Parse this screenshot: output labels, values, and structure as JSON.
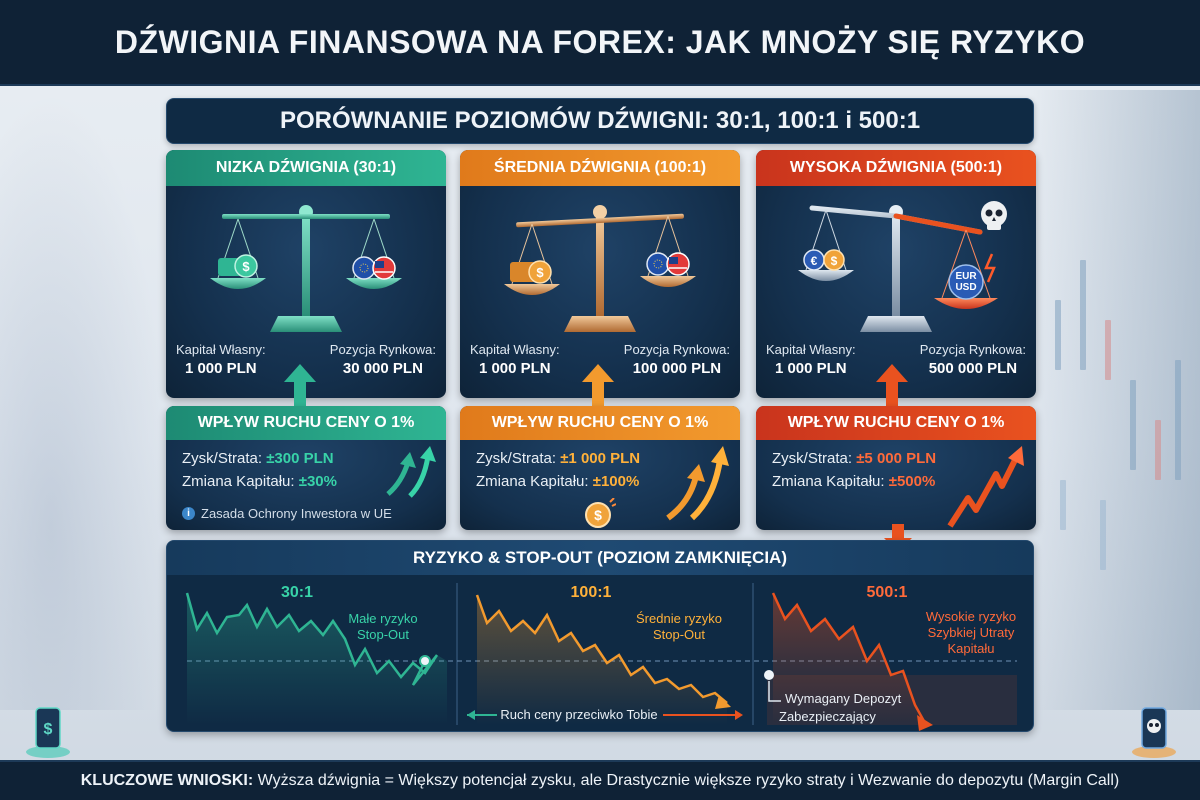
{
  "title": "DŹWIGNIA FINANSOWA NA FOREX: JAK MNOŻY SIĘ RYZYKO",
  "subtitle": "PORÓWNANIE POZIOMÓW DŹWIGNI: 30:1, 100:1 i 500:1",
  "panels": [
    {
      "header": "NIZKA DŹWIGNIA (30:1)",
      "equity_label": "Kapitał Własny:",
      "equity_value": "1 000 PLN",
      "position_label": "Pozycja Rynkowa:",
      "position_value": "30 000 PLN",
      "impact_header": "WPŁYW RUCHU CENY O 1%",
      "pl_label": "Zysk/Strata:",
      "pl_value": "±300 PLN",
      "change_label": "Zmiana Kapitału:",
      "change_value": "±30%",
      "note": "Zasada Ochrony Inwestora w UE",
      "color": "#2fb593"
    },
    {
      "header": "ŚREDNIA DŹWIGNIA (100:1)",
      "equity_label": "Kapitał Własny:",
      "equity_value": "1 000 PLN",
      "position_label": "Pozycja Rynkowa:",
      "position_value": "100 000 PLN",
      "impact_header": "WPŁYW RUCHU CENY O 1%",
      "pl_label": "Zysk/Strata:",
      "pl_value": "±1 000 PLN",
      "change_label": "Zmiana Kapitału:",
      "change_value": "±100%",
      "color": "#f29a2e"
    },
    {
      "header": "WYSOKA DŹWIGNIA (500:1)",
      "equity_label": "Kapitał Własny:",
      "equity_value": "1 000 PLN",
      "position_label": "Pozycja Rynkowa:",
      "position_value": "500 000 PLN",
      "impact_header": "WPŁYW RUCHU CENY O 1%",
      "pl_label": "Zysk/Strata:",
      "pl_value": "±5 000 PLN",
      "change_label": "Zmiana Kapitału:",
      "change_value": "±500%",
      "badge_text": "EUR\nUSD",
      "color": "#e9521f"
    }
  ],
  "risk": {
    "header": "RYZYKO & STOP-OUT (POZIOM ZAMKNIĘCIA)",
    "charts": [
      {
        "ratio": "30:1",
        "caption_line1": "Małe ryzyko",
        "caption_line2": "Stop-Out",
        "color": "#2fb593"
      },
      {
        "ratio": "100:1",
        "caption_line1": "Średnie ryzyko",
        "caption_line2": "Stop-Out",
        "color": "#f29a2e"
      },
      {
        "ratio": "500:1",
        "caption_line1": "Wysokie ryzyko",
        "caption_line2": "Szybkiej Utraty",
        "caption_line3": "Kapitału",
        "color": "#e9521f"
      }
    ],
    "against_label": "Ruch ceny przeciwko Tobie",
    "margin_label_line1": "Wymagany Depozyt",
    "margin_label_line2": "Zabezpieczający"
  },
  "footer": {
    "bold": "KLUCZOWE WNIOSKI:",
    "text": " Wyższa dźwignia = Większy potencjał zysku, ale Drastycznie większe ryzyko straty i Wezwanie do depozytu (Margin Call)"
  },
  "icons": [
    "scale-icon",
    "coin-icon",
    "euro-coin-icon",
    "us-flag-coin-icon",
    "skull-icon",
    "arrow-up-icon",
    "arrow-down-icon",
    "info-icon",
    "phone-dollar-icon",
    "phone-skull-icon"
  ]
}
